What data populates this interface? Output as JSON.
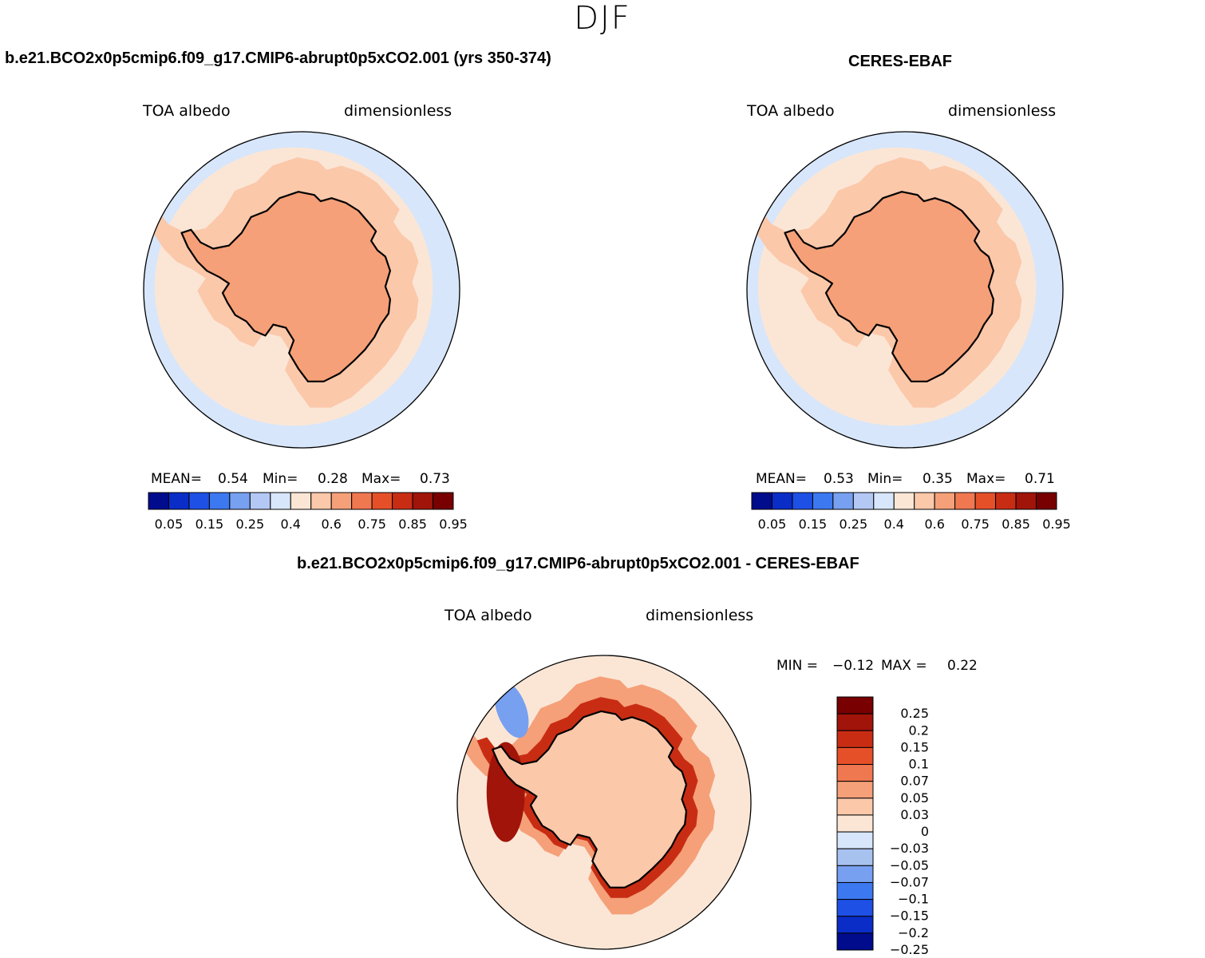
{
  "season": "DJF",
  "panels": [
    {
      "id": "model",
      "title": "b.e21.BCO2x0p5cmip6.f09_g17.CMIP6-abrupt0p5xCO2.001 (yrs 350-374)",
      "left_label": "TOA albedo",
      "right_label": "dimensionless",
      "mean_label": "MEAN=",
      "mean": "0.54",
      "min_label": "Min=",
      "min": "0.28",
      "max_label": "Max=",
      "max": "0.73"
    },
    {
      "id": "obs",
      "title": "CERES-EBAF",
      "left_label": "TOA albedo",
      "right_label": "dimensionless",
      "mean_label": "MEAN=",
      "mean": "0.53",
      "min_label": "Min=",
      "min": "0.35",
      "max_label": "Max=",
      "max": "0.71"
    },
    {
      "id": "diff",
      "title": "b.e21.BCO2x0p5cmip6.f09_g17.CMIP6-abrupt0p5xCO2.001 - CERES-EBAF",
      "left_label": "TOA albedo",
      "right_label": "dimensionless",
      "min_label": "MIN =",
      "min": "−0.12",
      "max_label": "MAX =",
      "max": "0.22"
    }
  ],
  "chart_data": [
    {
      "type": "heatmap",
      "projection": "south-polar-stereographic",
      "title": "b.e21.BCO2x0p5cmip6.f09_g17.CMIP6-abrupt0p5xCO2.001 (yrs 350-374)",
      "variable": "TOA albedo",
      "units": "dimensionless",
      "stats": {
        "mean": 0.54,
        "min": 0.28,
        "max": 0.73
      },
      "colorbar_ticks": [
        "0.05",
        "0.15",
        "0.25",
        "0.4",
        "0.6",
        "0.75",
        "0.85",
        "0.95"
      ],
      "levels": [
        0.05,
        0.1,
        0.15,
        0.2,
        0.25,
        0.3,
        0.4,
        0.5,
        0.6,
        0.7,
        0.75,
        0.8,
        0.85,
        0.9,
        0.95
      ],
      "zones": {
        "ocean_far": 0.3,
        "ocean": 0.45,
        "sea_ice": 0.55,
        "continent": 0.65
      }
    },
    {
      "type": "heatmap",
      "projection": "south-polar-stereographic",
      "title": "CERES-EBAF",
      "variable": "TOA albedo",
      "units": "dimensionless",
      "stats": {
        "mean": 0.53,
        "min": 0.35,
        "max": 0.71
      },
      "colorbar_ticks": [
        "0.05",
        "0.15",
        "0.25",
        "0.4",
        "0.6",
        "0.75",
        "0.85",
        "0.95"
      ],
      "levels": [
        0.05,
        0.1,
        0.15,
        0.2,
        0.25,
        0.3,
        0.4,
        0.5,
        0.6,
        0.7,
        0.75,
        0.8,
        0.85,
        0.9,
        0.95
      ],
      "zones": {
        "ocean_far": 0.3,
        "ocean": 0.45,
        "sea_ice": 0.55,
        "continent": 0.62
      }
    },
    {
      "type": "heatmap",
      "projection": "south-polar-stereographic",
      "title": "b.e21.BCO2x0p5cmip6.f09_g17.CMIP6-abrupt0p5xCO2.001 - CERES-EBAF",
      "variable": "TOA albedo",
      "units": "dimensionless",
      "stats": {
        "min": -0.12,
        "max": 0.22
      },
      "colorbar_ticks": [
        "0.25",
        "0.2",
        "0.15",
        "0.1",
        "0.07",
        "0.05",
        "0.03",
        "0",
        "−0.03",
        "−0.05",
        "−0.07",
        "−0.1",
        "−0.15",
        "−0.2",
        "−0.25"
      ],
      "zones": {
        "ocean": -0.01,
        "near_ice": 0.04,
        "coast": 0.12,
        "continent": 0.02,
        "peninsula": 0.15,
        "weddell": -0.1
      }
    }
  ],
  "colors": {
    "model_obs_palette": [
      "#000c8c",
      "#0a2dc8",
      "#1e50e6",
      "#3c78f0",
      "#78a0f0",
      "#b4c8f5",
      "#d7e6fa",
      "#fbe6d6",
      "#fbc8aa",
      "#f5a078",
      "#f07850",
      "#e65028",
      "#c82d14",
      "#a0140a",
      "#780000"
    ],
    "diff_palette": [
      "#000c8c",
      "#0a2dc8",
      "#1e50e6",
      "#3c78f0",
      "#78a0f0",
      "#a8c2f0",
      "#d7e6fa",
      "#fbe6d6",
      "#fbc8aa",
      "#f5a078",
      "#f07850",
      "#e65028",
      "#c82d14",
      "#a0140a",
      "#780000"
    ],
    "outline": "#000000"
  }
}
